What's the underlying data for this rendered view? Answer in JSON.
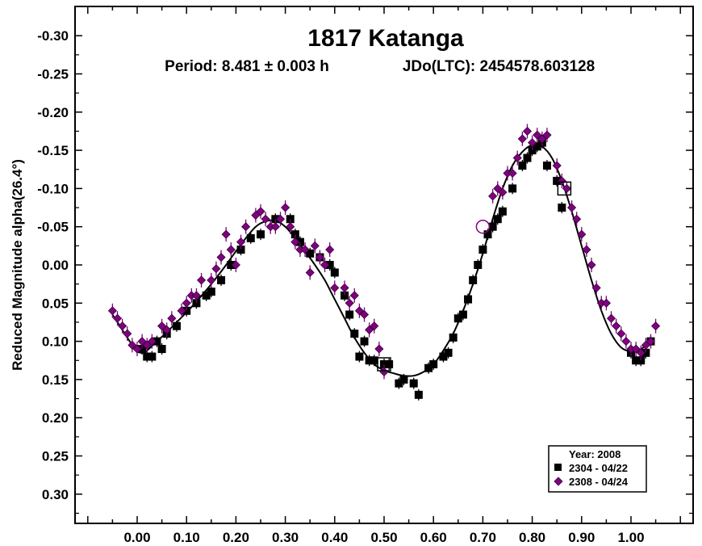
{
  "chart_data": {
    "type": "scatter",
    "title": "1817 Katanga",
    "subtitle_period": "Period: 8.481 ± 0.003 h",
    "subtitle_epoch": "JDo(LTC): 2454578.603128",
    "xlabel": "",
    "ylabel": "Reduced Magnitude alpha(26.4°)",
    "xlim": [
      -0.13,
      1.13
    ],
    "ylim": [
      -0.35,
      0.35
    ],
    "y_inverted": true,
    "xticks": [
      "0.00",
      "0.10",
      "0.20",
      "0.30",
      "0.40",
      "0.50",
      "0.60",
      "0.70",
      "0.80",
      "0.90",
      "1.00"
    ],
    "yticks": [
      "-0.30",
      "-0.25",
      "-0.20",
      "-0.15",
      "-0.10",
      "-0.05",
      "0.00",
      "0.05",
      "0.10",
      "0.15",
      "0.20",
      "0.25",
      "0.30"
    ],
    "grid": false,
    "legend": {
      "placement": "bottom-right",
      "title": "Year: 2008",
      "entries": [
        "2304 - 04/22",
        "2308 - 04/24"
      ]
    },
    "colors": {
      "series1": "#000000",
      "series2": "#800080"
    },
    "series": [
      {
        "name": "2304 - 04/22",
        "marker": "square",
        "x": [
          0.01,
          0.02,
          0.03,
          0.04,
          0.05,
          0.06,
          0.08,
          0.1,
          0.12,
          0.14,
          0.15,
          0.17,
          0.19,
          0.21,
          0.23,
          0.25,
          0.28,
          0.31,
          0.32,
          0.33,
          0.35,
          0.37,
          0.39,
          0.4,
          0.42,
          0.43,
          0.44,
          0.45,
          0.46,
          0.47,
          0.48,
          0.5,
          0.51,
          0.53,
          0.54,
          0.56,
          0.57,
          0.59,
          0.6,
          0.62,
          0.63,
          0.64,
          0.65,
          0.66,
          0.67,
          0.68,
          0.69,
          0.7,
          0.71,
          0.72,
          0.73,
          0.74,
          0.76,
          0.78,
          0.79,
          0.8,
          0.81,
          0.82,
          0.83,
          0.85,
          0.86,
          1.0,
          1.01,
          1.02,
          1.03,
          1.04
        ],
        "y": [
          0.11,
          0.12,
          0.12,
          0.1,
          0.11,
          0.09,
          0.08,
          0.06,
          0.05,
          0.04,
          0.035,
          0.02,
          0.0,
          -0.02,
          -0.035,
          -0.04,
          -0.06,
          -0.06,
          -0.04,
          -0.03,
          -0.015,
          -0.01,
          0.0,
          0.01,
          0.04,
          0.065,
          0.09,
          0.12,
          0.1,
          0.125,
          0.125,
          0.13,
          0.13,
          0.155,
          0.15,
          0.155,
          0.17,
          0.135,
          0.13,
          0.12,
          0.115,
          0.095,
          0.07,
          0.065,
          0.045,
          0.02,
          0.0,
          -0.02,
          -0.04,
          -0.05,
          -0.06,
          -0.07,
          -0.1,
          -0.13,
          -0.14,
          -0.15,
          -0.155,
          -0.16,
          -0.13,
          -0.11,
          -0.075,
          0.115,
          0.125,
          0.125,
          0.115,
          0.1
        ]
      },
      {
        "name": "2308 - 04/24",
        "marker": "diamond",
        "x": [
          -0.05,
          -0.04,
          -0.03,
          -0.02,
          -0.01,
          0.0,
          0.01,
          0.02,
          0.03,
          0.05,
          0.06,
          0.07,
          0.09,
          0.1,
          0.11,
          0.12,
          0.13,
          0.15,
          0.16,
          0.17,
          0.18,
          0.19,
          0.2,
          0.21,
          0.22,
          0.24,
          0.25,
          0.26,
          0.27,
          0.28,
          0.29,
          0.3,
          0.31,
          0.32,
          0.33,
          0.34,
          0.35,
          0.36,
          0.37,
          0.38,
          0.39,
          0.4,
          0.42,
          0.43,
          0.44,
          0.45,
          0.46,
          0.47,
          0.48,
          0.49,
          0.5,
          0.72,
          0.73,
          0.74,
          0.75,
          0.76,
          0.77,
          0.78,
          0.79,
          0.8,
          0.81,
          0.82,
          0.83,
          0.85,
          0.86,
          0.87,
          0.88,
          0.89,
          0.9,
          0.91,
          0.92,
          0.93,
          0.94,
          0.95,
          0.96,
          0.97,
          0.98,
          0.99,
          1.0,
          1.01,
          1.02,
          1.03,
          1.04,
          1.05
        ],
        "y": [
          0.06,
          0.07,
          0.08,
          0.09,
          0.105,
          0.11,
          0.1,
          0.105,
          0.1,
          0.08,
          0.085,
          0.07,
          0.06,
          0.05,
          0.04,
          0.04,
          0.02,
          0.02,
          0.005,
          -0.01,
          -0.04,
          -0.02,
          0.0,
          -0.03,
          -0.05,
          -0.065,
          -0.07,
          -0.06,
          -0.05,
          -0.05,
          -0.06,
          -0.075,
          -0.05,
          -0.03,
          -0.02,
          -0.02,
          0.01,
          -0.025,
          -0.01,
          0.0,
          -0.02,
          0.03,
          0.03,
          0.05,
          0.04,
          0.06,
          0.065,
          0.085,
          0.08,
          0.11,
          0.14,
          -0.09,
          -0.1,
          -0.095,
          -0.12,
          -0.12,
          -0.14,
          -0.165,
          -0.175,
          -0.16,
          -0.17,
          -0.165,
          -0.17,
          -0.13,
          -0.11,
          -0.1,
          -0.075,
          -0.06,
          -0.04,
          -0.02,
          0.0,
          0.03,
          0.05,
          0.05,
          0.07,
          0.08,
          0.09,
          0.1,
          0.11,
          0.11,
          0.115,
          0.105,
          0.1,
          0.08
        ]
      }
    ],
    "fit_curve": {
      "x": [
        -0.05,
        -0.03,
        -0.01,
        0.0,
        0.01,
        0.02,
        0.04,
        0.06,
        0.08,
        0.1,
        0.12,
        0.14,
        0.16,
        0.18,
        0.2,
        0.22,
        0.24,
        0.26,
        0.28,
        0.3,
        0.32,
        0.34,
        0.36,
        0.38,
        0.4,
        0.42,
        0.44,
        0.46,
        0.48,
        0.5,
        0.52,
        0.54,
        0.56,
        0.58,
        0.6,
        0.62,
        0.64,
        0.66,
        0.68,
        0.7,
        0.72,
        0.74,
        0.76,
        0.78,
        0.8,
        0.82,
        0.84,
        0.86,
        0.88,
        0.9,
        0.92,
        0.94,
        0.96,
        0.98,
        1.0,
        1.02,
        1.04
      ],
      "y": [
        0.065,
        0.085,
        0.105,
        0.113,
        0.115,
        0.112,
        0.1,
        0.088,
        0.075,
        0.062,
        0.048,
        0.033,
        0.017,
        0.0,
        -0.018,
        -0.035,
        -0.05,
        -0.057,
        -0.058,
        -0.05,
        -0.035,
        -0.018,
        0.0,
        0.02,
        0.045,
        0.07,
        0.095,
        0.115,
        0.13,
        0.138,
        0.142,
        0.145,
        0.145,
        0.14,
        0.13,
        0.112,
        0.09,
        0.06,
        0.025,
        -0.015,
        -0.06,
        -0.1,
        -0.13,
        -0.148,
        -0.157,
        -0.155,
        -0.14,
        -0.11,
        -0.07,
        -0.025,
        0.02,
        0.06,
        0.09,
        0.108,
        0.113,
        0.11,
        0.1
      ]
    },
    "annotations": {
      "hollow_squares": [
        {
          "x": 0.865,
          "y": -0.1
        },
        {
          "x": 0.5,
          "y": 0.13
        }
      ],
      "hollow_circles": [
        {
          "x": 0.7,
          "y": -0.05
        }
      ]
    }
  }
}
